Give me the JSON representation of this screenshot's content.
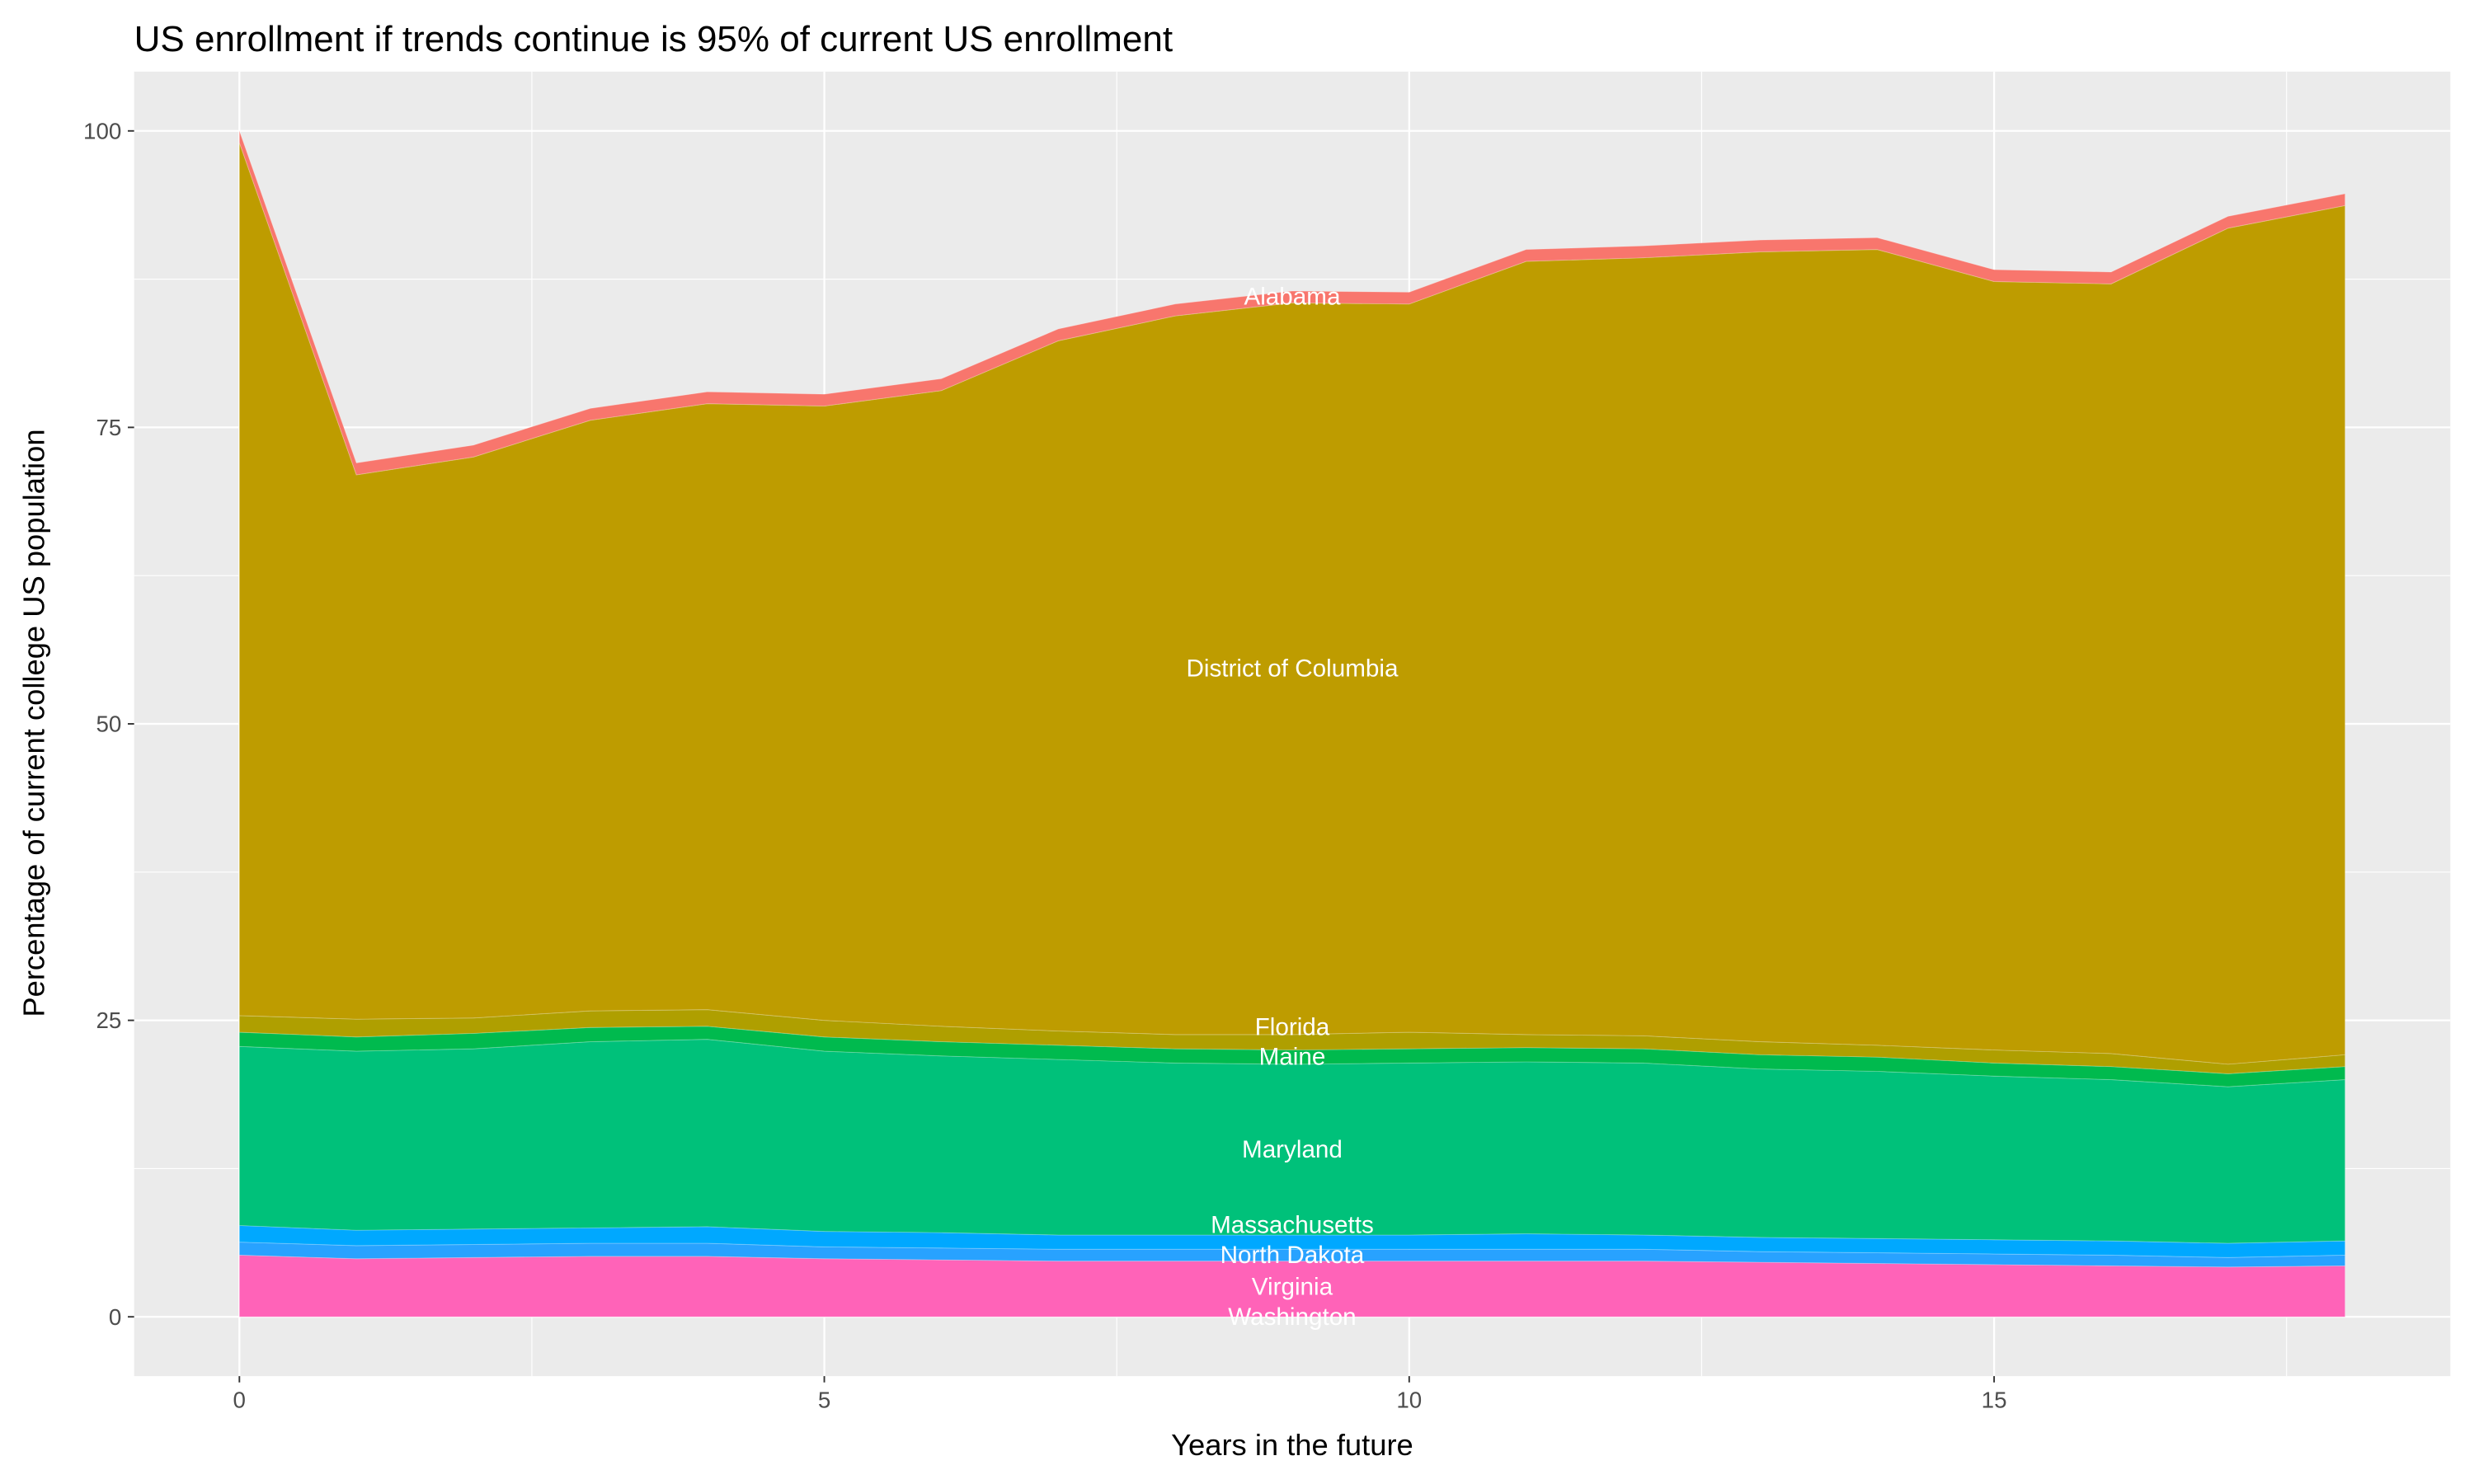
{
  "chart_data": {
    "type": "area",
    "stacked": true,
    "title": "US enrollment if trends continue is 95% of current US enrollment",
    "xlabel": "Years in the future",
    "ylabel": "Percentage of current college US population",
    "xlim": [
      -0.9,
      18.9
    ],
    "ylim": [
      -5,
      105
    ],
    "x_ticks": [
      0,
      5,
      10,
      15
    ],
    "y_ticks": [
      0,
      25,
      50,
      75,
      100
    ],
    "grid": true,
    "legend": "none",
    "label_x": 9,
    "x": [
      0,
      1,
      2,
      3,
      4,
      5,
      6,
      7,
      8,
      9,
      10,
      11,
      12,
      13,
      14,
      15,
      16,
      17,
      18
    ],
    "series": [
      {
        "name": "Washington",
        "color": "#FF62BC",
        "values": [
          0,
          0,
          0,
          0,
          0,
          0,
          0,
          0,
          0,
          0,
          0,
          0,
          0,
          0,
          0,
          0,
          0,
          0,
          0
        ]
      },
      {
        "name": "Virginia",
        "color": "#FF63B8",
        "values": [
          5.2,
          4.9,
          5.0,
          5.1,
          5.1,
          4.9,
          4.8,
          4.7,
          4.7,
          4.7,
          4.7,
          4.7,
          4.7,
          4.6,
          4.5,
          4.4,
          4.3,
          4.2,
          4.3
        ]
      },
      {
        "name": "North Dakota",
        "color": "#28A2FF",
        "values": [
          1.1,
          1.1,
          1.1,
          1.1,
          1.1,
          1.0,
          1.0,
          1.0,
          1.0,
          1.0,
          1.0,
          1.0,
          1.0,
          0.9,
          0.9,
          0.9,
          0.9,
          0.8,
          0.9
        ]
      },
      {
        "name": "Massachusetts",
        "color": "#00A8FF",
        "values": [
          1.4,
          1.3,
          1.3,
          1.3,
          1.4,
          1.3,
          1.3,
          1.2,
          1.2,
          1.2,
          1.2,
          1.3,
          1.2,
          1.2,
          1.2,
          1.2,
          1.2,
          1.2,
          1.2
        ]
      },
      {
        "name": "Maryland",
        "color": "#00C17A",
        "values": [
          15.1,
          15.1,
          15.2,
          15.7,
          15.8,
          15.2,
          14.9,
          14.8,
          14.5,
          14.4,
          14.5,
          14.5,
          14.5,
          14.2,
          14.1,
          13.8,
          13.6,
          13.2,
          13.6
        ]
      },
      {
        "name": "Maine",
        "color": "#00BA4E",
        "values": [
          1.2,
          1.2,
          1.3,
          1.2,
          1.1,
          1.2,
          1.2,
          1.2,
          1.2,
          1.2,
          1.2,
          1.2,
          1.2,
          1.2,
          1.2,
          1.1,
          1.1,
          1.1,
          1.1
        ]
      },
      {
        "name": "Florida",
        "color": "#AF9F00",
        "values": [
          1.4,
          1.5,
          1.3,
          1.4,
          1.4,
          1.4,
          1.3,
          1.2,
          1.2,
          1.3,
          1.4,
          1.1,
          1.1,
          1.1,
          1.0,
          1.1,
          1.1,
          0.8,
          1.0
        ]
      },
      {
        "name": "District of Columbia",
        "color": "#BE9C00",
        "values": [
          73.6,
          45.9,
          47.3,
          49.8,
          51.1,
          51.8,
          53.6,
          58.2,
          60.6,
          61.7,
          61.4,
          65.2,
          65.6,
          66.6,
          67.1,
          64.8,
          64.9,
          70.5,
          71.6
        ]
      },
      {
        "name": "Alabama",
        "color": "#F8766D",
        "values": [
          1,
          1,
          1,
          1,
          1,
          1,
          1,
          1,
          1,
          1,
          1,
          1,
          1,
          1,
          1,
          1,
          1,
          1,
          1
        ]
      }
    ]
  },
  "colors": {
    "panel": "#EBEBEB",
    "grid": "#FFFFFF",
    "label": "#FFFFFF"
  }
}
